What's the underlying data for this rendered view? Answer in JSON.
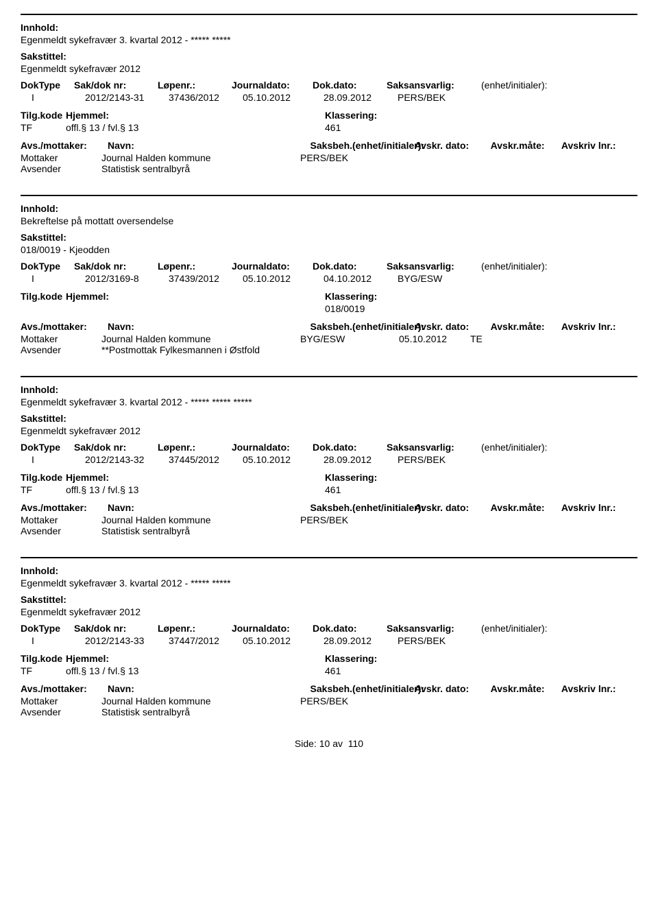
{
  "labels": {
    "innhold": "Innhold:",
    "sakstittel": "Sakstittel:",
    "doktype": "DokType",
    "sakdoknr": "Sak/dok nr:",
    "lopenr": "Løpenr.:",
    "journaldato": "Journaldato:",
    "dokdato": "Dok.dato:",
    "saksansvarlig": "Saksansvarlig:",
    "enhet": "(enhet/initialer):",
    "tilgkode": "Tilg.kode",
    "hjemmel": "Hjemmel:",
    "klassering": "Klassering:",
    "avsmottaker": "Avs./mottaker:",
    "navn": "Navn:",
    "saksbeh": "Saksbeh.(enhet/initialer):",
    "avskrdato": "Avskr. dato:",
    "avskrmate": "Avskr.måte:",
    "avskrivlnr": "Avskriv lnr.:",
    "mottaker": "Mottaker",
    "avsender": "Avsender"
  },
  "records": [
    {
      "innhold": "Egenmeldt sykefravær 3. kvartal 2012 - ***** *****",
      "sakstittel": "Egenmeldt sykefravær 2012",
      "doktype": "I",
      "sakdoknr": "2012/2143-31",
      "lopenr": "37436/2012",
      "journaldato": "05.10.2012",
      "dokdato": "28.09.2012",
      "saksansvarlig": "PERS/BEK",
      "tilgkode": "TF",
      "hjemmel": "offl.§ 13 / fvl.§ 13",
      "klassering": "461",
      "parties": [
        {
          "role": "Mottaker",
          "navn": "Journal Halden kommune",
          "saksbeh": "PERS/BEK",
          "avskrdato": "",
          "avskrmate": ""
        },
        {
          "role": "Avsender",
          "navn": "Statistisk sentralbyrå",
          "saksbeh": "",
          "avskrdato": "",
          "avskrmate": ""
        }
      ]
    },
    {
      "innhold": "Bekreftelse på mottatt oversendelse",
      "sakstittel": "018/0019 - Kjeodden",
      "doktype": "I",
      "sakdoknr": "2012/3169-8",
      "lopenr": "37439/2012",
      "journaldato": "05.10.2012",
      "dokdato": "04.10.2012",
      "saksansvarlig": "BYG/ESW",
      "tilgkode": "",
      "hjemmel": "",
      "klassering": "018/0019",
      "parties": [
        {
          "role": "Mottaker",
          "navn": "Journal Halden kommune",
          "saksbeh": "BYG/ESW",
          "avskrdato": "05.10.2012",
          "avskrmate": "TE"
        },
        {
          "role": "Avsender",
          "navn": "**Postmottak Fylkesmannen i Østfold",
          "saksbeh": "",
          "avskrdato": "",
          "avskrmate": ""
        }
      ]
    },
    {
      "innhold": "Egenmeldt sykefravær 3. kvartal 2012 - ***** ***** *****",
      "sakstittel": "Egenmeldt sykefravær 2012",
      "doktype": "I",
      "sakdoknr": "2012/2143-32",
      "lopenr": "37445/2012",
      "journaldato": "05.10.2012",
      "dokdato": "28.09.2012",
      "saksansvarlig": "PERS/BEK",
      "tilgkode": "TF",
      "hjemmel": "offl.§ 13 / fvl.§ 13",
      "klassering": "461",
      "parties": [
        {
          "role": "Mottaker",
          "navn": "Journal Halden kommune",
          "saksbeh": "PERS/BEK",
          "avskrdato": "",
          "avskrmate": ""
        },
        {
          "role": "Avsender",
          "navn": "Statistisk sentralbyrå",
          "saksbeh": "",
          "avskrdato": "",
          "avskrmate": ""
        }
      ]
    },
    {
      "innhold": "Egenmeldt sykefravær 3. kvartal 2012 - ***** *****",
      "sakstittel": "Egenmeldt sykefravær 2012",
      "doktype": "I",
      "sakdoknr": "2012/2143-33",
      "lopenr": "37447/2012",
      "journaldato": "05.10.2012",
      "dokdato": "28.09.2012",
      "saksansvarlig": "PERS/BEK",
      "tilgkode": "TF",
      "hjemmel": "offl.§ 13 / fvl.§ 13",
      "klassering": "461",
      "parties": [
        {
          "role": "Mottaker",
          "navn": "Journal Halden kommune",
          "saksbeh": "PERS/BEK",
          "avskrdato": "",
          "avskrmate": ""
        },
        {
          "role": "Avsender",
          "navn": "Statistisk sentralbyrå",
          "saksbeh": "",
          "avskrdato": "",
          "avskrmate": ""
        }
      ]
    }
  ],
  "footer": {
    "side": "Side:",
    "page": "10",
    "av": "av",
    "total": "110"
  }
}
